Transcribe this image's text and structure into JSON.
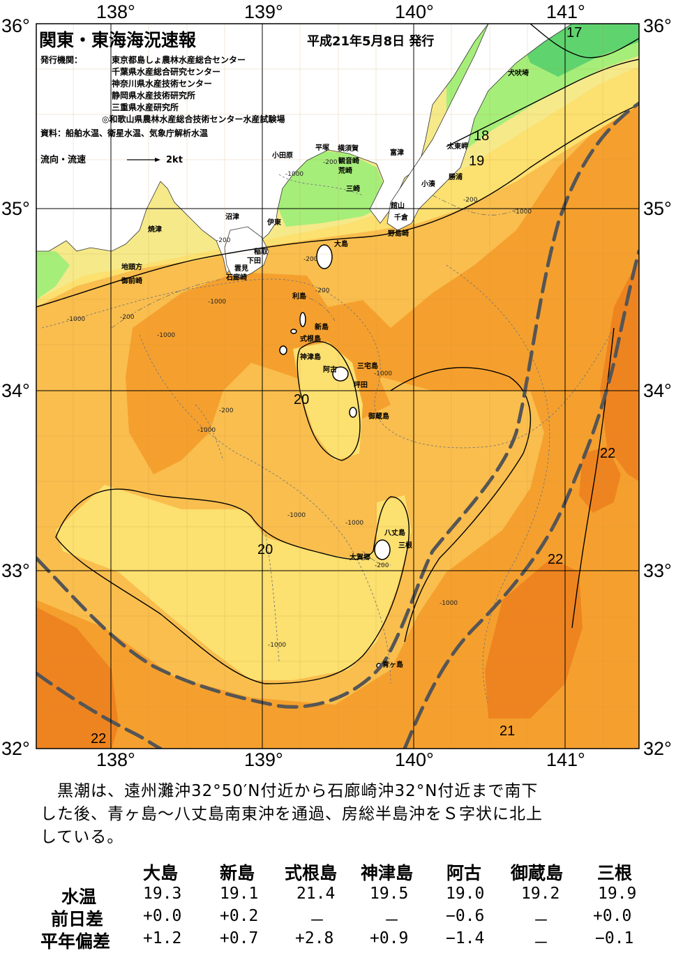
{
  "header": {
    "title": "関東・東海海況速報",
    "issue_date": "平成21年5月8日 発行",
    "publisher_label": "発行機関：",
    "publishers": [
      "東京都島しょ農林水産総合センター",
      "千葉県水産総合研究センター",
      "神奈川県水産技術センター",
      "静岡県水産技術研究所",
      "三重県水産研究所",
      "◎和歌山県農林水産総合技術センター水産試験場"
    ],
    "sources": "資料：船舶水温、衛星水温、気象庁解析水温",
    "current_legend_label": "流向・流速",
    "current_legend_value": "2kt"
  },
  "axes": {
    "longitude_ticks": [
      "138°",
      "139°",
      "140°",
      "141°"
    ],
    "latitude_ticks": [
      "36°",
      "35°",
      "34°",
      "33°",
      "32°"
    ]
  },
  "colors": {
    "temp_le17": "#5fd36e",
    "temp_17_18": "#a6ee7a",
    "temp_18_19": "#f5e98a",
    "temp_19_20": "#fce070",
    "temp_20_21": "#f9be4e",
    "temp_21_22": "#f5a02e",
    "temp_ge22": "#ee8420",
    "land": "#ffffff",
    "kuroshio_axis": "#555555"
  },
  "isotherm_labels": [
    "17",
    "18",
    "19",
    "20",
    "20",
    "21",
    "22",
    "22",
    "22"
  ],
  "depth_labels": [
    "-200",
    "-1000"
  ],
  "place_names": {
    "inubosaki": "犬吠埼",
    "taitomisaki": "太東岬",
    "katsuura": "勝浦",
    "kominato": "小湊",
    "futtsu": "富津",
    "yokosuka": "横須賀",
    "hiratsuka": "平塚",
    "odawara": "小田原",
    "kannonzaki": "観音崎",
    "arasaki": "荒崎",
    "misaki": "三崎",
    "tateyama": "館山",
    "chikura": "千倉",
    "nojimazaki": "野島崎",
    "numazu": "沼津",
    "ito": "伊東",
    "inatori": "稲取",
    "shimoda": "下田",
    "kumomi": "雲見",
    "irozaki": "石廊崎",
    "yaizu": "焼津",
    "jitogata": "地頭方",
    "omaezaki": "御前崎",
    "oshima": "大島",
    "toshima": "利島",
    "niijima": "新島",
    "shikinejima": "式根島",
    "kozushima": "神津島",
    "miyakejima": "三宅島",
    "ako": "阿古",
    "tsubota": "坪田",
    "mikurajima": "御蔵島",
    "hachijojima": "八丈島",
    "mitsune": "三根",
    "okago": "大賀郷",
    "aogashima": "青ヶ島"
  },
  "comment": {
    "line1": "　黒潮は、遠州灘沖32°50′N付近から石廊崎沖32°N付近まで南下",
    "line2": "した後、青ヶ島〜八丈島南東沖を通過、房総半島沖をＳ字状に北上",
    "line3": "している。"
  },
  "table": {
    "columns": [
      "大島",
      "新島",
      "式根島",
      "神津島",
      "阿古",
      "御蔵島",
      "三根"
    ],
    "rows": [
      {
        "label": "水温",
        "values": [
          "19.3",
          "19.1",
          "21.4",
          "19.5",
          "19.0",
          "19.2",
          "19.9"
        ]
      },
      {
        "label": "前日差",
        "values": [
          "+0.0",
          "+0.2",
          "－",
          "－",
          "−0.6",
          "－",
          "+0.0"
        ]
      },
      {
        "label": "平年偏差",
        "values": [
          "+1.2",
          "+0.7",
          "+2.8",
          "+0.9",
          "−1.4",
          "－",
          "−0.1"
        ]
      }
    ]
  }
}
